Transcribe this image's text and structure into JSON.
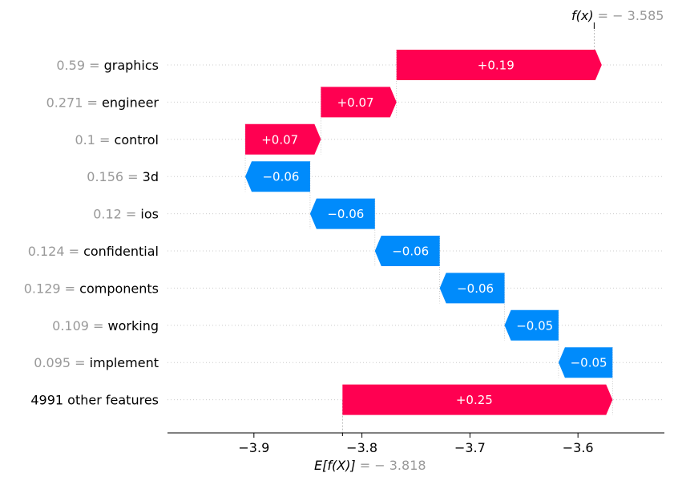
{
  "chart_data": {
    "type": "waterfall",
    "colors": {
      "positive": "#ff0051",
      "negative": "#008bfb"
    },
    "features": [
      {
        "value": "0.59",
        "name": "graphics",
        "contribution": 0.19,
        "label": "+0.19"
      },
      {
        "value": "0.271",
        "name": "engineer",
        "contribution": 0.07,
        "label": "+0.07"
      },
      {
        "value": "0.1",
        "name": "control",
        "contribution": 0.07,
        "label": "+0.07"
      },
      {
        "value": "0.156",
        "name": "3d",
        "contribution": -0.06,
        "label": "−0.06"
      },
      {
        "value": "0.12",
        "name": "ios",
        "contribution": -0.06,
        "label": "−0.06"
      },
      {
        "value": "0.124",
        "name": "confidential",
        "contribution": -0.06,
        "label": "−0.06"
      },
      {
        "value": "0.129",
        "name": "components",
        "contribution": -0.06,
        "label": "−0.06"
      },
      {
        "value": "0.109",
        "name": "working",
        "contribution": -0.05,
        "label": "−0.05"
      },
      {
        "value": "0.095",
        "name": "implement",
        "contribution": -0.05,
        "label": "−0.05"
      },
      {
        "value": "",
        "name": "4991 other features",
        "contribution": 0.25,
        "label": "+0.25"
      }
    ],
    "fx": {
      "label": "f(x)",
      "text": "= − 3.585",
      "value": -3.585
    },
    "base": {
      "label": "E[f(X)]",
      "text": "= − 3.818",
      "value": -3.818
    },
    "xticks": [
      {
        "value": -3.9,
        "label": "−3.9"
      },
      {
        "value": -3.8,
        "label": "−3.8"
      },
      {
        "value": -3.7,
        "label": "−3.7"
      },
      {
        "value": -3.6,
        "label": "−3.6"
      }
    ],
    "xlim": [
      -3.98,
      -3.52
    ]
  }
}
